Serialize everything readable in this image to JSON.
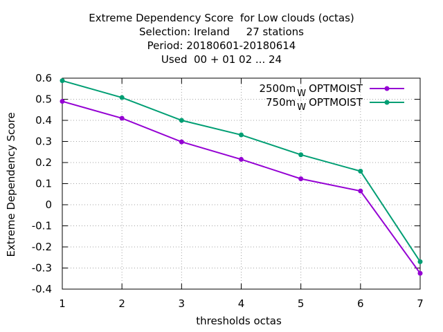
{
  "chart_data": {
    "type": "line",
    "title_lines": [
      "Extreme Dependency Score  for Low clouds (octas)",
      "Selection: Ireland     27 stations",
      "Period: 20180601-20180614",
      "Used  00 + 01 02 ... 24"
    ],
    "xlabel": "thresholds octas",
    "ylabel": "Extreme Dependency Score",
    "x": [
      1,
      2,
      3,
      4,
      5,
      6,
      7
    ],
    "xlim": [
      1,
      7
    ],
    "ylim": [
      -0.4,
      0.6
    ],
    "yticks": [
      "-0.4",
      "-0.3",
      "-0.2",
      "-0.1",
      "0",
      "0.1",
      "0.2",
      "0.3",
      "0.4",
      "0.5",
      "0.6"
    ],
    "xticks": [
      "1",
      "2",
      "3",
      "4",
      "5",
      "6",
      "7"
    ],
    "grid": true,
    "legend_position": "top-right",
    "series": [
      {
        "name": "2500m",
        "name_sub": "W",
        "name_suffix": "OPTMOIST",
        "color": "#9400d3",
        "values": [
          0.49,
          0.41,
          0.298,
          0.215,
          0.123,
          0.065,
          -0.325
        ]
      },
      {
        "name": "750m",
        "name_sub": "W",
        "name_suffix": "OPTMOIST",
        "color": "#009e73",
        "values": [
          0.588,
          0.508,
          0.4,
          0.331,
          0.237,
          0.159,
          -0.27
        ]
      }
    ]
  }
}
